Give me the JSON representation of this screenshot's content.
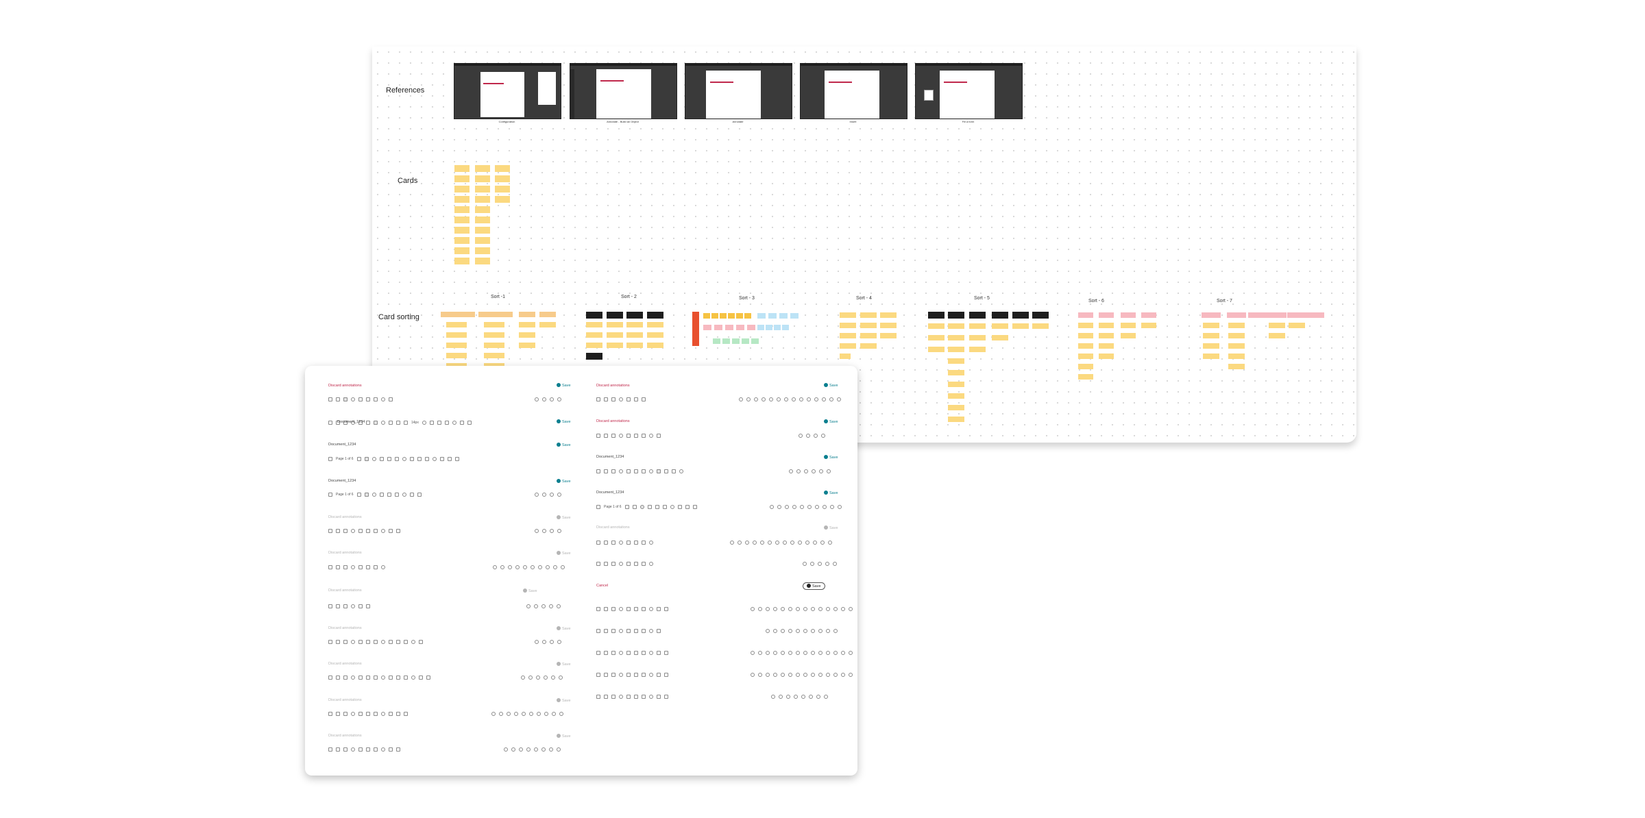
{
  "board": {
    "sections": {
      "references": "References",
      "cards": "Cards",
      "card_sorting": "Card sorting"
    },
    "reference_captions": [
      "Configuration",
      "Annotate - Build an Object",
      "Annotate",
      "Insert",
      "Fill a form"
    ],
    "sorts": [
      "Sort -1",
      "Sort - 2",
      "Sort - 3",
      "Sort - 4",
      "Sort - 5",
      "Sort - 6",
      "Sort - 7"
    ]
  },
  "panel": {
    "discard_label": "Discard annotations",
    "save_label": "Save",
    "document_name": "Document_1234",
    "page_label": "Page",
    "page_current": "1",
    "page_total": "of 6",
    "cancel_label": "Cancel",
    "font_size": "14px",
    "zoom_label": "Fit"
  },
  "colors": {
    "accent": "#c0284b",
    "save": "#0b7f8f",
    "sticky": "#fbd980",
    "sticky_pink": "#f7b9c0",
    "sticky_blue": "#bde3f6",
    "sticky_green": "#b6e8c4",
    "sticky_red": "#e8502e",
    "dark_card": "#1e1e1e"
  }
}
